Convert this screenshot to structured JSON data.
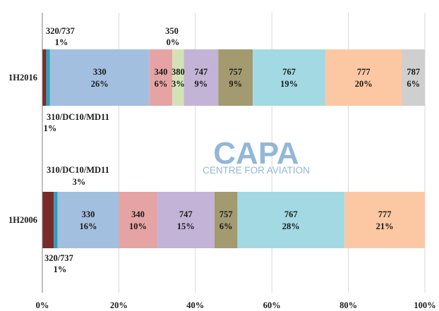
{
  "chart_data": {
    "type": "bar",
    "orientation": "horizontal",
    "stacked": true,
    "normalized": true,
    "categories": [
      "1H2016",
      "1H2006"
    ],
    "xlim": [
      0,
      100
    ],
    "x_ticks": [
      "0%",
      "20%",
      "40%",
      "60%",
      "80%",
      "100%"
    ],
    "grid": true,
    "legend": "none",
    "series": [
      {
        "name": "310/DC10/MD11",
        "color": "#7a2b2b",
        "values": [
          1,
          3
        ]
      },
      {
        "name": "320/737",
        "color": "#2f9fbf",
        "values": [
          1,
          1
        ]
      },
      {
        "name": "330",
        "color": "#a3bfdf",
        "values": [
          26,
          16
        ]
      },
      {
        "name": "340",
        "color": "#e6a3a3",
        "values": [
          6,
          10
        ]
      },
      {
        "name": "350",
        "color": "#7a5f9a",
        "values": [
          0,
          0
        ]
      },
      {
        "name": "380",
        "color": "#d3e2b5",
        "values": [
          3,
          0
        ]
      },
      {
        "name": "747",
        "color": "#c3b3d6",
        "values": [
          9,
          15
        ]
      },
      {
        "name": "757",
        "color": "#a39a6f",
        "values": [
          9,
          6
        ]
      },
      {
        "name": "767",
        "color": "#a3d9e3",
        "values": [
          19,
          28
        ]
      },
      {
        "name": "777",
        "color": "#fcc8a3",
        "values": [
          20,
          21
        ]
      },
      {
        "name": "787",
        "color": "#cfcfcf",
        "values": [
          6,
          0
        ]
      }
    ],
    "segment_labels": [
      [
        {
          "series": 2,
          "name": "330",
          "pct": "26%"
        },
        {
          "series": 3,
          "name": "340",
          "pct": "6%"
        },
        {
          "series": 5,
          "name": "380",
          "pct": "3%"
        },
        {
          "series": 6,
          "name": "747",
          "pct": "9%"
        },
        {
          "series": 7,
          "name": "757",
          "pct": "9%"
        },
        {
          "series": 8,
          "name": "767",
          "pct": "19%"
        },
        {
          "series": 9,
          "name": "777",
          "pct": "20%"
        },
        {
          "series": 10,
          "name": "787",
          "pct": "6%"
        }
      ],
      [
        {
          "series": 2,
          "name": "330",
          "pct": "16%"
        },
        {
          "series": 3,
          "name": "340",
          "pct": "10%"
        },
        {
          "series": 6,
          "name": "747",
          "pct": "15%"
        },
        {
          "series": 7,
          "name": "757",
          "pct": "6%"
        },
        {
          "series": 8,
          "name": "767",
          "pct": "28%"
        },
        {
          "series": 9,
          "name": "777",
          "pct": "21%"
        }
      ]
    ],
    "callouts": [
      {
        "name": "320/737",
        "pct": "1%"
      },
      {
        "name": "350",
        "pct": "0%"
      },
      {
        "name": "310/DC10/MD11",
        "pct": "1%"
      },
      {
        "name": "310/DC10/MD11",
        "pct": "3%"
      },
      {
        "name": "320/737",
        "pct": "1%"
      }
    ]
  },
  "watermark": {
    "main": "CAPA",
    "sub": "CENTRE FOR AVIATION",
    "color": "#6f9fc9"
  }
}
